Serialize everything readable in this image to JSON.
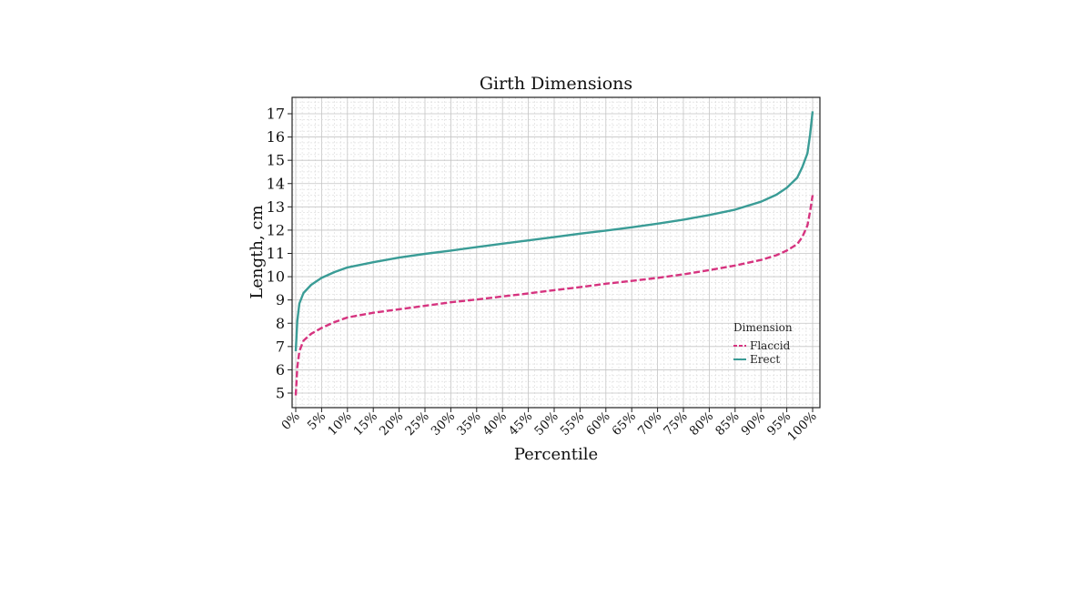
{
  "chart_data": {
    "type": "line",
    "title": "Girth Dimensions",
    "xlabel": "Percentile",
    "ylabel": "Length, cm",
    "xlim": [
      0,
      100
    ],
    "ylim": [
      4.5,
      17.8
    ],
    "x_ticks": [
      "0%",
      "5%",
      "10%",
      "15%",
      "20%",
      "25%",
      "30%",
      "35%",
      "40%",
      "45%",
      "50%",
      "55%",
      "60%",
      "65%",
      "70%",
      "75%",
      "80%",
      "85%",
      "90%",
      "95%",
      "100%"
    ],
    "y_ticks": [
      5,
      6,
      7,
      8,
      9,
      10,
      11,
      12,
      13,
      14,
      15,
      16,
      17
    ],
    "grid": true,
    "legend": {
      "title": "Dimension",
      "position": "right",
      "entries": [
        "Flaccid",
        "Erect"
      ]
    },
    "series": [
      {
        "name": "Flaccid",
        "color": "#d6337f",
        "style": "dashed",
        "x": [
          0,
          0.3,
          0.7,
          1.5,
          3,
          5,
          7.5,
          10,
          15,
          20,
          25,
          30,
          35,
          40,
          45,
          50,
          55,
          60,
          65,
          70,
          75,
          80,
          85,
          90,
          93,
          95,
          97,
          98,
          99,
          99.5,
          100
        ],
        "y": [
          4.9,
          6.1,
          6.8,
          7.25,
          7.55,
          7.8,
          8.05,
          8.25,
          8.45,
          8.6,
          8.75,
          8.9,
          9.02,
          9.15,
          9.28,
          9.42,
          9.55,
          9.7,
          9.82,
          9.95,
          10.1,
          10.28,
          10.48,
          10.72,
          10.92,
          11.12,
          11.4,
          11.7,
          12.2,
          12.8,
          13.5
        ]
      },
      {
        "name": "Erect",
        "color": "#3a9c96",
        "style": "solid",
        "x": [
          0,
          0.3,
          0.7,
          1.5,
          3,
          5,
          7.5,
          10,
          15,
          20,
          25,
          30,
          35,
          40,
          45,
          50,
          55,
          60,
          65,
          70,
          75,
          80,
          85,
          90,
          93,
          95,
          97,
          98,
          99,
          99.5,
          100
        ],
        "y": [
          6.8,
          8.1,
          8.85,
          9.3,
          9.65,
          9.95,
          10.2,
          10.4,
          10.62,
          10.82,
          10.98,
          11.12,
          11.27,
          11.42,
          11.56,
          11.7,
          11.85,
          11.98,
          12.12,
          12.28,
          12.45,
          12.65,
          12.88,
          13.22,
          13.52,
          13.82,
          14.25,
          14.7,
          15.3,
          16.1,
          17.1
        ]
      }
    ]
  }
}
